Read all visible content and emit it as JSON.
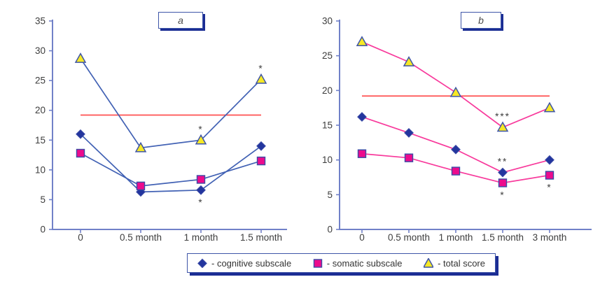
{
  "figure": {
    "panel_a_label": "a",
    "panel_b_label": "b"
  },
  "colors": {
    "axis": "#7181c8",
    "tick_text": "#3d3d3d",
    "reference_line": "#ff5050",
    "panel_a_line": "#4161b4",
    "panel_b_line": "#f83a9c",
    "cognitive_marker": "#23359e",
    "cognitive_marker_stroke": "#3b4ba6",
    "somatic_marker": "#ec0b8d",
    "somatic_marker_stroke": "#3b4ba6",
    "total_marker_fill": "#f6e825",
    "total_marker_stroke": "#3e55a8",
    "box_border": "#3e55a8",
    "box_shadow": "#1b2d94",
    "annotation": "#4a4a4a"
  },
  "legend": {
    "items": [
      {
        "id": "cognitive",
        "marker": "diamond",
        "label": "- cognitive subscale"
      },
      {
        "id": "somatic",
        "marker": "square",
        "label": "- somatic subscale"
      },
      {
        "id": "total",
        "marker": "triangle",
        "label": "- total score"
      }
    ]
  },
  "chart_data": [
    {
      "type": "line",
      "panel_label": "a",
      "categories": [
        "0",
        "0.5 month",
        "1 month",
        "1.5 month"
      ],
      "ylim": [
        0,
        35
      ],
      "ytick_step": 5,
      "grid": false,
      "legend_position": "bottom-shared",
      "reference_line_y": 19.2,
      "line_color_key": "panel_a_line",
      "series": [
        {
          "name": "cognitive subscale",
          "marker": "diamond",
          "values": [
            16,
            6.3,
            6.6,
            14
          ],
          "annotations": [
            {
              "index": 2,
              "text": "*",
              "side": "below"
            }
          ]
        },
        {
          "name": "somatic subscale",
          "marker": "square",
          "values": [
            12.8,
            7.3,
            8.4,
            11.5
          ],
          "annotations": []
        },
        {
          "name": "total score",
          "marker": "triangle",
          "values": [
            28.7,
            13.7,
            15,
            25.2
          ],
          "annotations": [
            {
              "index": 2,
              "text": "*",
              "side": "above"
            },
            {
              "index": 3,
              "text": "*",
              "side": "above"
            }
          ]
        }
      ]
    },
    {
      "type": "line",
      "panel_label": "b",
      "categories": [
        "0",
        "0.5 month",
        "1 month",
        "1.5 month",
        "3 month"
      ],
      "ylim": [
        0,
        30
      ],
      "ytick_step": 5,
      "grid": false,
      "legend_position": "bottom-shared",
      "reference_line_y": 19.2,
      "line_color_key": "panel_b_line",
      "series": [
        {
          "name": "cognitive subscale",
          "marker": "diamond",
          "values": [
            16.2,
            13.9,
            11.5,
            8.2,
            10
          ],
          "annotations": [
            {
              "index": 3,
              "text": "**",
              "side": "above"
            }
          ]
        },
        {
          "name": "somatic subscale",
          "marker": "square",
          "values": [
            10.9,
            10.3,
            8.4,
            6.7,
            7.8
          ],
          "annotations": [
            {
              "index": 3,
              "text": "*",
              "side": "below"
            },
            {
              "index": 4,
              "text": "*",
              "side": "below"
            }
          ]
        },
        {
          "name": "total score",
          "marker": "triangle",
          "values": [
            27,
            24.1,
            19.7,
            14.7,
            17.5
          ],
          "annotations": [
            {
              "index": 3,
              "text": "***",
              "side": "above"
            }
          ]
        }
      ]
    }
  ]
}
